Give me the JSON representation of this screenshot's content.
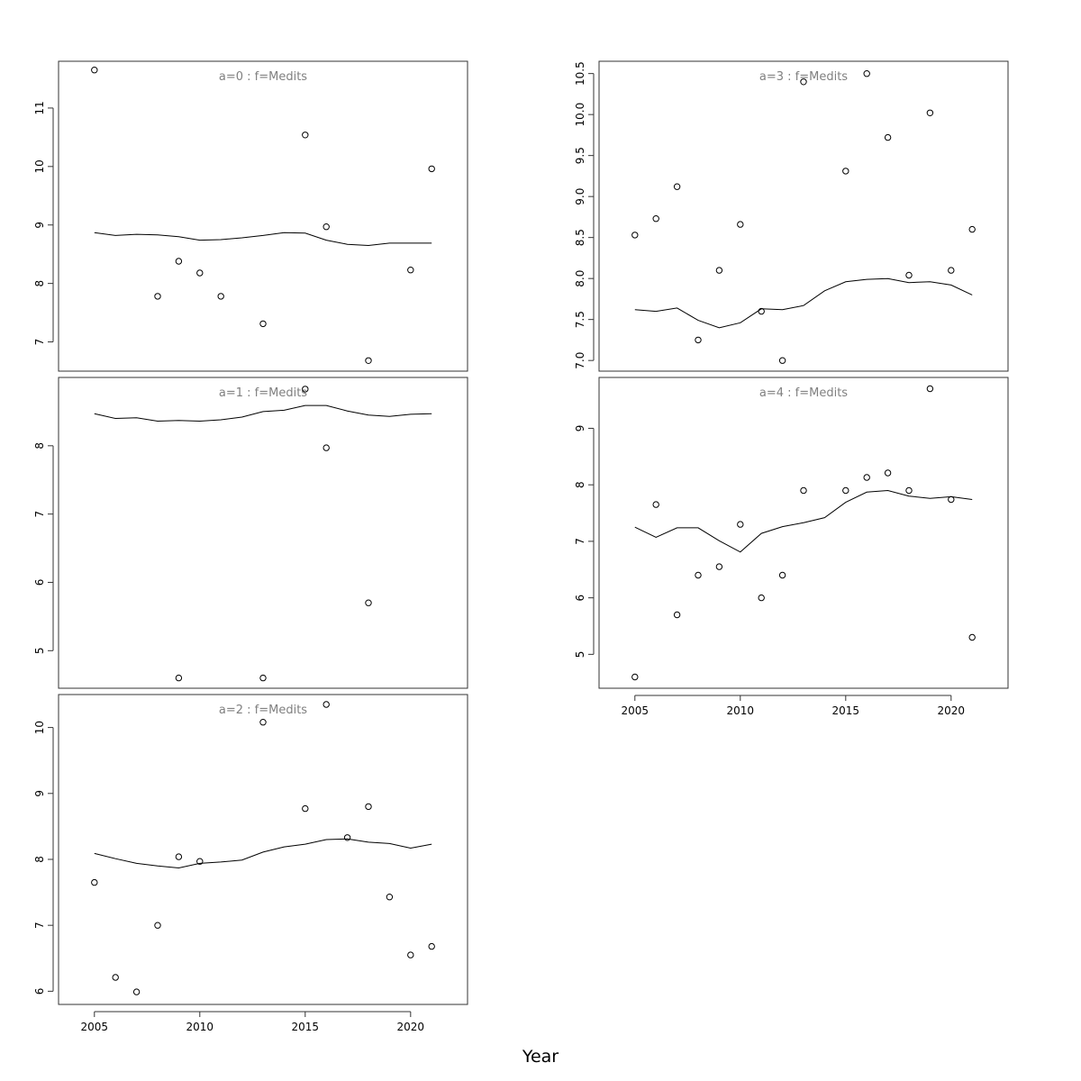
{
  "chart_data": {
    "type": "scatter",
    "xlabel": "Year",
    "x_ticks": [
      2005,
      2010,
      2015,
      2020
    ],
    "panels": [
      {
        "title": "a=0 : f=Medits",
        "ylim": [
          6.5,
          11.8
        ],
        "y_ticks": [
          7,
          8,
          9,
          10,
          11
        ],
        "y_tick_labels": [
          "7",
          "8",
          "9",
          "10",
          "11"
        ],
        "points": [
          [
            2005,
            11.65
          ],
          [
            2008,
            7.78
          ],
          [
            2009,
            8.38
          ],
          [
            2010,
            8.18
          ],
          [
            2011,
            7.78
          ],
          [
            2013,
            7.31
          ],
          [
            2015,
            10.54
          ],
          [
            2016,
            8.97
          ],
          [
            2018,
            6.68
          ],
          [
            2020,
            8.23
          ],
          [
            2021,
            9.96
          ]
        ],
        "fit": [
          [
            2005,
            8.87
          ],
          [
            2006,
            8.82
          ],
          [
            2007,
            8.84
          ],
          [
            2008,
            8.83
          ],
          [
            2009,
            8.8
          ],
          [
            2010,
            8.74
          ],
          [
            2011,
            8.75
          ],
          [
            2012,
            8.78
          ],
          [
            2013,
            8.82
          ],
          [
            2014,
            8.87
          ],
          [
            2015,
            8.86
          ],
          [
            2016,
            8.74
          ],
          [
            2017,
            8.67
          ],
          [
            2018,
            8.65
          ],
          [
            2019,
            8.69
          ],
          [
            2020,
            8.69
          ],
          [
            2021,
            8.69
          ]
        ]
      },
      {
        "title": "a=1 : f=Medits",
        "ylim": [
          4.45,
          9.0
        ],
        "y_ticks": [
          5,
          6,
          7,
          8
        ],
        "y_tick_labels": [
          "5",
          "6",
          "7",
          "8"
        ],
        "points": [
          [
            2009,
            4.6
          ],
          [
            2013,
            4.6
          ],
          [
            2015,
            8.83
          ],
          [
            2016,
            7.97
          ],
          [
            2018,
            5.7
          ]
        ],
        "fit": [
          [
            2005,
            8.47
          ],
          [
            2006,
            8.4
          ],
          [
            2007,
            8.41
          ],
          [
            2008,
            8.36
          ],
          [
            2009,
            8.37
          ],
          [
            2010,
            8.36
          ],
          [
            2011,
            8.38
          ],
          [
            2012,
            8.42
          ],
          [
            2013,
            8.5
          ],
          [
            2014,
            8.52
          ],
          [
            2015,
            8.59
          ],
          [
            2016,
            8.59
          ],
          [
            2017,
            8.51
          ],
          [
            2018,
            8.45
          ],
          [
            2019,
            8.43
          ],
          [
            2020,
            8.46
          ],
          [
            2021,
            8.47
          ]
        ]
      },
      {
        "title": "a=2 : f=Medits",
        "ylim": [
          5.8,
          10.5
        ],
        "y_ticks": [
          6,
          7,
          8,
          9,
          10
        ],
        "y_tick_labels": [
          "6",
          "7",
          "8",
          "9",
          "10"
        ],
        "points": [
          [
            2005,
            7.65
          ],
          [
            2006,
            6.21
          ],
          [
            2007,
            5.99
          ],
          [
            2008,
            7.0
          ],
          [
            2009,
            8.04
          ],
          [
            2010,
            7.97
          ],
          [
            2013,
            10.08
          ],
          [
            2015,
            8.77
          ],
          [
            2016,
            10.35
          ],
          [
            2017,
            8.33
          ],
          [
            2018,
            8.8
          ],
          [
            2019,
            7.43
          ],
          [
            2020,
            6.55
          ],
          [
            2021,
            6.68
          ]
        ],
        "fit": [
          [
            2005,
            8.09
          ],
          [
            2006,
            8.01
          ],
          [
            2007,
            7.94
          ],
          [
            2008,
            7.9
          ],
          [
            2009,
            7.87
          ],
          [
            2010,
            7.94
          ],
          [
            2011,
            7.96
          ],
          [
            2012,
            7.99
          ],
          [
            2013,
            8.11
          ],
          [
            2014,
            8.19
          ],
          [
            2015,
            8.23
          ],
          [
            2016,
            8.3
          ],
          [
            2017,
            8.31
          ],
          [
            2018,
            8.26
          ],
          [
            2019,
            8.24
          ],
          [
            2020,
            8.17
          ],
          [
            2021,
            8.23
          ]
        ]
      },
      {
        "title": "a=3 : f=Medits",
        "ylim": [
          6.87,
          10.65
        ],
        "y_ticks": [
          7.0,
          7.5,
          8.0,
          8.5,
          9.0,
          9.5,
          10.0,
          10.5
        ],
        "y_tick_labels": [
          "7.0",
          "7.5",
          "8.0",
          "8.5",
          "9.0",
          "9.5",
          "10.0",
          "10.5"
        ],
        "points": [
          [
            2005,
            8.53
          ],
          [
            2006,
            8.73
          ],
          [
            2007,
            9.12
          ],
          [
            2008,
            7.25
          ],
          [
            2009,
            8.1
          ],
          [
            2010,
            8.66
          ],
          [
            2011,
            7.6
          ],
          [
            2012,
            7.0
          ],
          [
            2013,
            10.4
          ],
          [
            2015,
            9.31
          ],
          [
            2016,
            10.5
          ],
          [
            2017,
            9.72
          ],
          [
            2018,
            8.04
          ],
          [
            2019,
            10.02
          ],
          [
            2020,
            8.1
          ],
          [
            2021,
            8.6
          ]
        ],
        "fit": [
          [
            2005,
            7.62
          ],
          [
            2006,
            7.6
          ],
          [
            2007,
            7.64
          ],
          [
            2008,
            7.49
          ],
          [
            2009,
            7.4
          ],
          [
            2010,
            7.46
          ],
          [
            2011,
            7.63
          ],
          [
            2012,
            7.62
          ],
          [
            2013,
            7.67
          ],
          [
            2014,
            7.85
          ],
          [
            2015,
            7.96
          ],
          [
            2016,
            7.99
          ],
          [
            2017,
            8.0
          ],
          [
            2018,
            7.95
          ],
          [
            2019,
            7.96
          ],
          [
            2020,
            7.92
          ],
          [
            2021,
            7.8
          ]
        ]
      },
      {
        "title": "a=4 : f=Medits",
        "ylim": [
          4.4,
          9.9
        ],
        "y_ticks": [
          5,
          6,
          7,
          8,
          9
        ],
        "y_tick_labels": [
          "5",
          "6",
          "7",
          "8",
          "9"
        ],
        "points": [
          [
            2005,
            4.6
          ],
          [
            2006,
            7.65
          ],
          [
            2007,
            5.7
          ],
          [
            2008,
            6.4
          ],
          [
            2009,
            6.55
          ],
          [
            2010,
            7.3
          ],
          [
            2011,
            6.0
          ],
          [
            2012,
            6.4
          ],
          [
            2013,
            7.9
          ],
          [
            2015,
            7.9
          ],
          [
            2016,
            8.13
          ],
          [
            2017,
            8.21
          ],
          [
            2018,
            7.9
          ],
          [
            2019,
            9.7
          ],
          [
            2020,
            7.74
          ],
          [
            2021,
            5.3
          ]
        ],
        "fit": [
          [
            2005,
            7.25
          ],
          [
            2006,
            7.07
          ],
          [
            2007,
            7.24
          ],
          [
            2008,
            7.24
          ],
          [
            2009,
            7.01
          ],
          [
            2010,
            6.81
          ],
          [
            2011,
            7.14
          ],
          [
            2012,
            7.26
          ],
          [
            2013,
            7.33
          ],
          [
            2014,
            7.42
          ],
          [
            2015,
            7.69
          ],
          [
            2016,
            7.87
          ],
          [
            2017,
            7.9
          ],
          [
            2018,
            7.8
          ],
          [
            2019,
            7.76
          ],
          [
            2020,
            7.79
          ],
          [
            2021,
            7.74
          ]
        ]
      }
    ]
  }
}
